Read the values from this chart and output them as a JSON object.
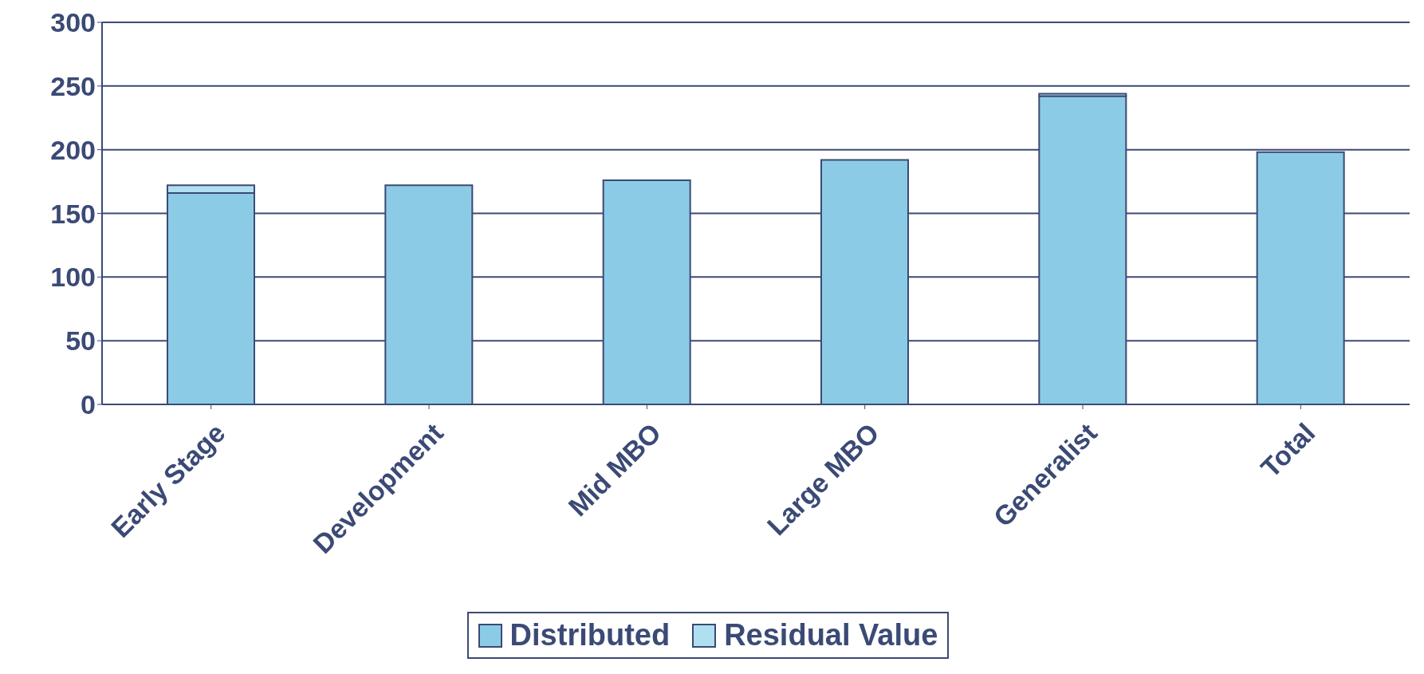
{
  "chart_data": {
    "type": "bar",
    "stacked": true,
    "categories": [
      "Early Stage",
      "Development",
      "Mid MBO",
      "Large MBO",
      "Generalist",
      "Total"
    ],
    "series": [
      {
        "name": "Distributed",
        "color": "#8ccbe6",
        "values": [
          166,
          172,
          176,
          192,
          242,
          198
        ]
      },
      {
        "name": "Residual Value",
        "color": "#b0dff0",
        "values": [
          6,
          0,
          0,
          0,
          2,
          0
        ]
      }
    ],
    "ylim": [
      0,
      300
    ],
    "yticks": [
      0,
      50,
      100,
      150,
      200,
      250,
      300
    ],
    "grid": "y",
    "legend": "bottom"
  }
}
